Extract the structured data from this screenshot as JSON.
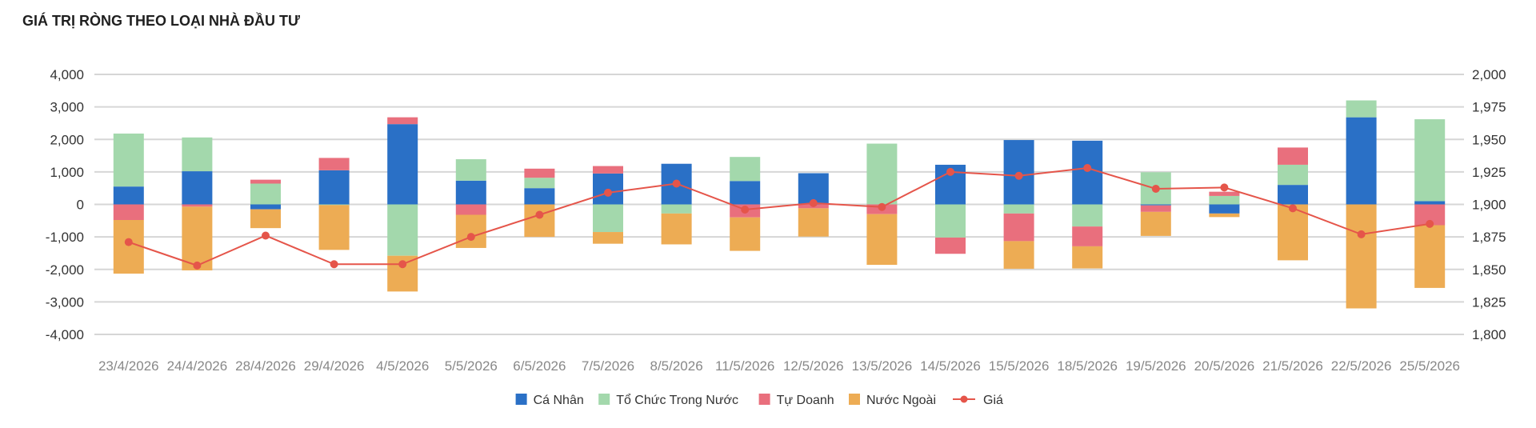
{
  "title": "GIÁ TRỊ RÒNG THEO LOẠI NHÀ ĐẦU TƯ",
  "colors": {
    "ca_nhan": "#2a70c6",
    "to_chuc": "#a3d8ac",
    "tu_doanh": "#e96f7d",
    "nuoc_ngoai": "#edac54",
    "gia": "#e5554a",
    "grid": "#d6d6d6"
  },
  "chart_data": {
    "type": "bar",
    "stacked": true,
    "categories": [
      "23/4/2026",
      "24/4/2026",
      "28/4/2026",
      "29/4/2026",
      "4/5/2026",
      "5/5/2026",
      "6/5/2026",
      "7/5/2026",
      "8/5/2026",
      "11/5/2026",
      "12/5/2026",
      "13/5/2026",
      "14/5/2026",
      "15/5/2026",
      "18/5/2026",
      "19/5/2026",
      "20/5/2026",
      "21/5/2026",
      "22/5/2026",
      "25/5/2026"
    ],
    "series": [
      {
        "name": "Cá Nhân",
        "color": "#2a70c6",
        "values": [
          550,
          1020,
          -150,
          1050,
          2470,
          730,
          500,
          950,
          1250,
          720,
          960,
          0,
          1220,
          1980,
          1960,
          -30,
          -280,
          600,
          2680,
          100
        ]
      },
      {
        "name": "Tổ Chức Trong Nước",
        "color": "#a3d8ac",
        "values": [
          1630,
          1040,
          640,
          -20,
          -1580,
          660,
          320,
          -850,
          -280,
          740,
          0,
          1870,
          -1020,
          -280,
          -680,
          990,
          260,
          620,
          520,
          2520
        ]
      },
      {
        "name": "Tự Doanh",
        "color": "#e96f7d",
        "values": [
          -480,
          -70,
          120,
          380,
          210,
          -320,
          280,
          230,
          0,
          -400,
          -120,
          -300,
          -500,
          -850,
          -610,
          -200,
          130,
          530,
          0,
          -640
        ]
      },
      {
        "name": "Nước Ngoài",
        "color": "#edac54",
        "values": [
          -1650,
          -1960,
          -580,
          -1380,
          -1100,
          -1020,
          -1000,
          -360,
          -950,
          -1030,
          -870,
          -1560,
          0,
          -850,
          -680,
          -740,
          -110,
          -1720,
          -3200,
          -1930
        ]
      }
    ],
    "line": {
      "name": "Giá",
      "color": "#e5554a",
      "values": [
        1871,
        1853,
        1876,
        1854,
        1854,
        1875,
        1892,
        1909,
        1916,
        1896,
        1901,
        1898,
        1925,
        1922,
        1928,
        1912,
        1913,
        1897,
        1877,
        1885
      ]
    },
    "yleft": {
      "min": -4000,
      "max": 4000,
      "ticks": [
        "4,000",
        "3,000",
        "2,000",
        "1,000",
        "0",
        "-1,000",
        "-2,000",
        "-3,000",
        "-4,000"
      ]
    },
    "yright": {
      "min": 1800,
      "max": 2000,
      "ticks": [
        "2,000",
        "1,975",
        "1,950",
        "1,925",
        "1,900",
        "1,875",
        "1,850",
        "1,825",
        "1,800"
      ]
    },
    "grid": true,
    "legend_position": "bottom-center"
  }
}
